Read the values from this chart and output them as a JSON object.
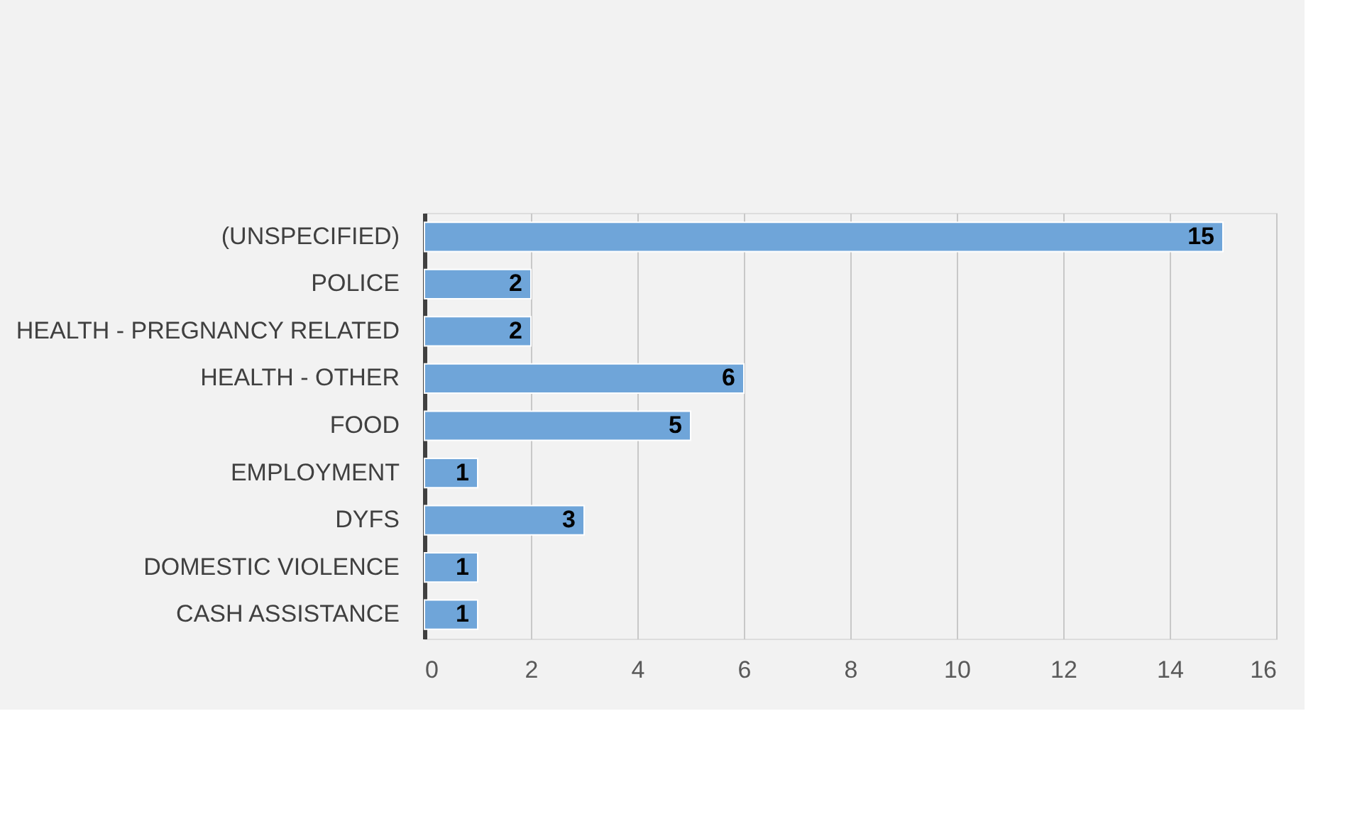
{
  "chart_data": {
    "type": "bar",
    "orientation": "horizontal",
    "categories": [
      "(UNSPECIFIED)",
      "POLICE",
      "HEALTH - PREGNANCY RELATED",
      "HEALTH - OTHER",
      "FOOD",
      "EMPLOYMENT",
      "DYFS",
      "DOMESTIC VIOLENCE",
      "CASH ASSISTANCE"
    ],
    "values": [
      15,
      2,
      2,
      6,
      5,
      1,
      3,
      1,
      1
    ],
    "color": "#6fa5d9",
    "xlim": [
      0,
      16
    ],
    "xticks": [
      0,
      2,
      4,
      6,
      8,
      10,
      12,
      14,
      16
    ],
    "grid": "x",
    "data_labels": true
  }
}
